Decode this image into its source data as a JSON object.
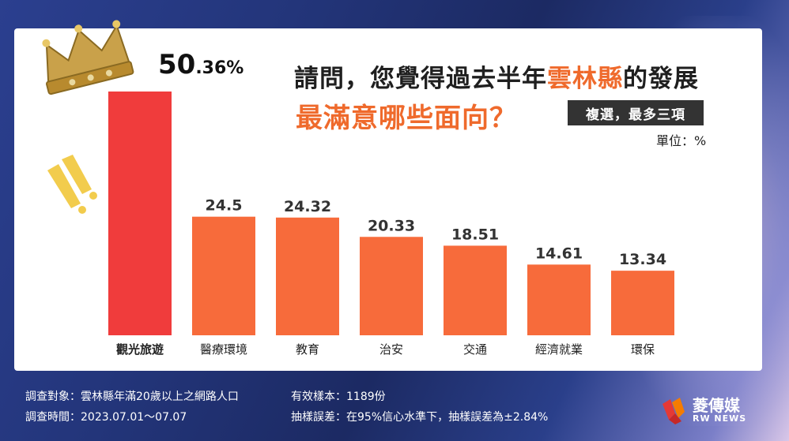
{
  "title": {
    "line1_prefix": "請問，您覺得過去半年",
    "line1_highlight": "雲林縣",
    "line1_suffix": "的發展",
    "line2": "最滿意哪些面向？"
  },
  "tag": "複選，最多三項",
  "unit": "單位：%",
  "top_value": {
    "big": "50",
    "small": ".36%"
  },
  "footer": {
    "target": "調查對象：雲林縣年滿20歲以上之網路人口",
    "period": "調查時間：2023.07.01～07.07",
    "sample": "有效樣本：1189份",
    "error": "抽樣誤差：在95%信心水準下，抽樣誤差為±2.84%"
  },
  "logo": {
    "name": "菱傳媒",
    "sub": "RW NEWS"
  },
  "colors": {
    "highlight_bar": "#f03c3c",
    "bar": "#f76b3b",
    "accent_text": "#ef6a2c",
    "crown": "#c9a14a"
  },
  "icons": [
    "crown-icon",
    "exclamation-icon",
    "rw-news-logo-icon"
  ],
  "chart_data": {
    "type": "bar",
    "categories": [
      "觀光旅遊",
      "醫療環境",
      "教育",
      "治安",
      "交通",
      "經濟就業",
      "環保"
    ],
    "values": [
      50.36,
      24.5,
      24.32,
      20.33,
      18.51,
      14.61,
      13.34
    ],
    "value_labels": [
      "50.36%",
      "24.5",
      "24.32",
      "20.33",
      "18.51",
      "14.61",
      "13.34"
    ],
    "highlight_index": 0,
    "ylim": [
      0,
      50.36
    ],
    "grid": false,
    "legend": "none"
  }
}
